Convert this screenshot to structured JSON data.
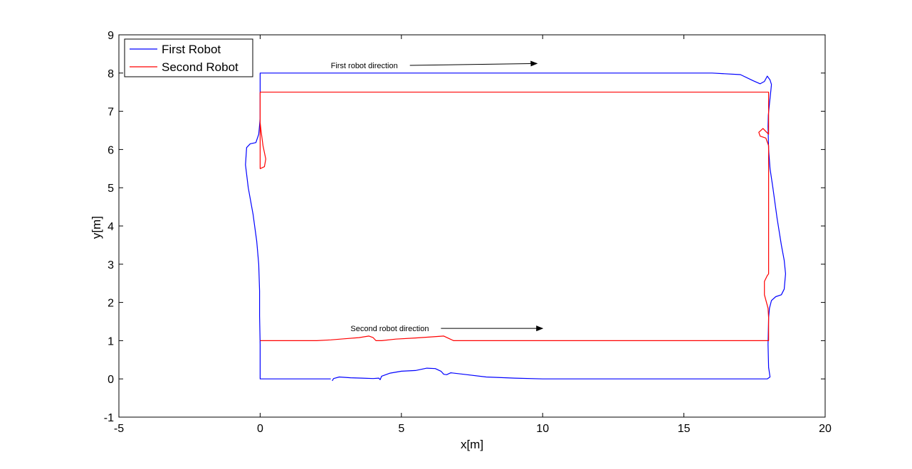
{
  "chart_data": {
    "type": "line",
    "title": "",
    "xlabel": "x[m]",
    "ylabel": "y[m]",
    "xlim": [
      -5,
      20
    ],
    "ylim": [
      -1,
      9
    ],
    "xticks": [
      -5,
      0,
      5,
      10,
      15,
      20
    ],
    "yticks": [
      -1,
      0,
      1,
      2,
      3,
      4,
      5,
      6,
      7,
      8,
      9
    ],
    "grid": false,
    "legend_position": "top-left",
    "series": [
      {
        "name": "First Robot",
        "color": "#0000ff",
        "points": [
          [
            2.55,
            -0.05
          ],
          [
            2.6,
            0.01
          ],
          [
            2.8,
            0.05
          ],
          [
            3.2,
            0.03
          ],
          [
            3.6,
            0.02
          ],
          [
            4.0,
            0.01
          ],
          [
            4.2,
            0.02
          ],
          [
            4.25,
            -0.02
          ],
          [
            4.3,
            0.07
          ],
          [
            4.6,
            0.15
          ],
          [
            5.0,
            0.2
          ],
          [
            5.5,
            0.22
          ],
          [
            5.9,
            0.28
          ],
          [
            6.2,
            0.27
          ],
          [
            6.4,
            0.2
          ],
          [
            6.5,
            0.12
          ],
          [
            6.6,
            0.11
          ],
          [
            6.75,
            0.16
          ],
          [
            7.2,
            0.12
          ],
          [
            8.0,
            0.05
          ],
          [
            9.0,
            0.02
          ],
          [
            10.0,
            0.0
          ],
          [
            12.0,
            0.0
          ],
          [
            14.0,
            0.0
          ],
          [
            16.0,
            0.0
          ],
          [
            17.5,
            0.0
          ],
          [
            17.95,
            0.0
          ],
          [
            18.05,
            0.05
          ],
          [
            18.0,
            0.3
          ],
          [
            17.98,
            0.9
          ],
          [
            18.0,
            1.6
          ],
          [
            18.03,
            1.85
          ],
          [
            18.1,
            2.05
          ],
          [
            18.25,
            2.15
          ],
          [
            18.45,
            2.2
          ],
          [
            18.55,
            2.35
          ],
          [
            18.6,
            2.75
          ],
          [
            18.55,
            3.1
          ],
          [
            18.45,
            3.5
          ],
          [
            18.3,
            4.2
          ],
          [
            18.15,
            5.0
          ],
          [
            18.05,
            5.5
          ],
          [
            18.0,
            6.0
          ],
          [
            17.98,
            6.6
          ],
          [
            17.99,
            6.9
          ],
          [
            18.03,
            7.2
          ],
          [
            18.08,
            7.55
          ],
          [
            18.1,
            7.7
          ],
          [
            18.05,
            7.82
          ],
          [
            17.95,
            7.92
          ],
          [
            17.85,
            7.78
          ],
          [
            17.7,
            7.72
          ],
          [
            17.45,
            7.8
          ],
          [
            17.0,
            7.96
          ],
          [
            16.0,
            8.0
          ],
          [
            14.0,
            8.0
          ],
          [
            12.0,
            8.0
          ],
          [
            10.0,
            8.0
          ],
          [
            8.0,
            8.0
          ],
          [
            6.0,
            8.0
          ],
          [
            4.0,
            8.0
          ],
          [
            2.0,
            8.0
          ],
          [
            0.0,
            8.0
          ],
          [
            0.0,
            6.8
          ],
          [
            -0.05,
            6.4
          ],
          [
            -0.15,
            6.18
          ],
          [
            -0.35,
            6.15
          ],
          [
            -0.48,
            6.05
          ],
          [
            -0.52,
            5.6
          ],
          [
            -0.42,
            5.0
          ],
          [
            -0.25,
            4.3
          ],
          [
            -0.12,
            3.6
          ],
          [
            -0.05,
            3.0
          ],
          [
            -0.02,
            2.3
          ],
          [
            -0.02,
            1.65
          ],
          [
            0.0,
            0.9
          ],
          [
            0.0,
            0.0
          ],
          [
            0.5,
            0.0
          ],
          [
            1.5,
            0.0
          ],
          [
            2.5,
            0.0
          ]
        ]
      },
      {
        "name": "Second Robot",
        "color": "#ff0000",
        "points": [
          [
            0.0,
            1.0
          ],
          [
            1.0,
            1.0
          ],
          [
            2.0,
            1.0
          ],
          [
            2.5,
            1.02
          ],
          [
            3.0,
            1.05
          ],
          [
            3.5,
            1.08
          ],
          [
            3.85,
            1.12
          ],
          [
            4.0,
            1.08
          ],
          [
            4.1,
            1.0
          ],
          [
            4.3,
            1.0
          ],
          [
            4.8,
            1.04
          ],
          [
            5.5,
            1.07
          ],
          [
            6.1,
            1.1
          ],
          [
            6.5,
            1.12
          ],
          [
            6.7,
            1.05
          ],
          [
            6.85,
            1.0
          ],
          [
            8.0,
            1.0
          ],
          [
            10.0,
            1.0
          ],
          [
            12.0,
            1.0
          ],
          [
            14.0,
            1.0
          ],
          [
            16.0,
            1.0
          ],
          [
            18.0,
            1.0
          ],
          [
            18.0,
            1.6
          ],
          [
            17.98,
            1.85
          ],
          [
            17.85,
            2.2
          ],
          [
            17.85,
            2.55
          ],
          [
            17.95,
            2.7
          ],
          [
            18.0,
            2.75
          ],
          [
            18.0,
            4.0
          ],
          [
            18.0,
            5.5
          ],
          [
            18.0,
            6.1
          ],
          [
            17.9,
            6.3
          ],
          [
            17.7,
            6.35
          ],
          [
            17.65,
            6.45
          ],
          [
            17.8,
            6.55
          ],
          [
            18.0,
            6.4
          ],
          [
            18.0,
            7.0
          ],
          [
            18.0,
            7.5
          ],
          [
            16.0,
            7.5
          ],
          [
            12.0,
            7.5
          ],
          [
            8.0,
            7.5
          ],
          [
            4.0,
            7.5
          ],
          [
            0.0,
            7.5
          ],
          [
            0.0,
            5.5
          ],
          [
            0.15,
            5.55
          ],
          [
            0.2,
            5.75
          ],
          [
            0.1,
            6.1
          ],
          [
            0.03,
            6.5
          ],
          [
            0.0,
            6.7
          ]
        ]
      }
    ],
    "annotations": [
      {
        "text": "First robot direction",
        "x": 2.5,
        "y": 8.2,
        "arrow_from": [
          5.3,
          8.2
        ],
        "arrow_to": [
          9.8,
          8.25
        ]
      },
      {
        "text": "Second robot direction",
        "x": 3.2,
        "y": 1.32,
        "arrow_from": [
          6.4,
          1.32
        ],
        "arrow_to": [
          10.0,
          1.32
        ]
      }
    ]
  }
}
